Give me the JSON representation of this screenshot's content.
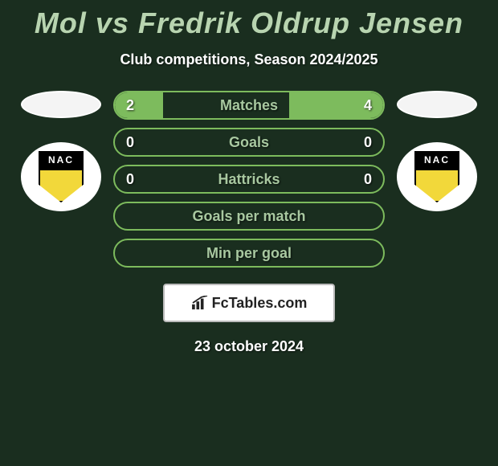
{
  "title": "Mol vs Fredrik Oldrup Jensen",
  "subtitle": "Club competitions, Season 2024/2025",
  "date": "23 october 2024",
  "brand": "FcTables.com",
  "colors": {
    "background": "#1a2e1f",
    "accent": "#7dbb5d",
    "title": "#b8d4b0",
    "stat_label": "#a8c8a0",
    "text_light": "#ffffff"
  },
  "left": {
    "flag_color": "#f4f4f4",
    "club_abbr": "NAC",
    "badge_primary": "#f2d83a",
    "badge_secondary": "#000000"
  },
  "right": {
    "flag_color": "#f4f4f4",
    "club_abbr": "NAC",
    "badge_primary": "#f2d83a",
    "badge_secondary": "#000000"
  },
  "stats": [
    {
      "label": "Matches",
      "left_val": "2",
      "right_val": "4",
      "left_fill_pct": 18,
      "right_fill_pct": 35
    },
    {
      "label": "Goals",
      "left_val": "0",
      "right_val": "0",
      "left_fill_pct": 0,
      "right_fill_pct": 0
    },
    {
      "label": "Hattricks",
      "left_val": "0",
      "right_val": "0",
      "left_fill_pct": 0,
      "right_fill_pct": 0
    },
    {
      "label": "Goals per match",
      "left_val": "",
      "right_val": "",
      "left_fill_pct": 0,
      "right_fill_pct": 0
    },
    {
      "label": "Min per goal",
      "left_val": "",
      "right_val": "",
      "left_fill_pct": 0,
      "right_fill_pct": 0
    }
  ]
}
